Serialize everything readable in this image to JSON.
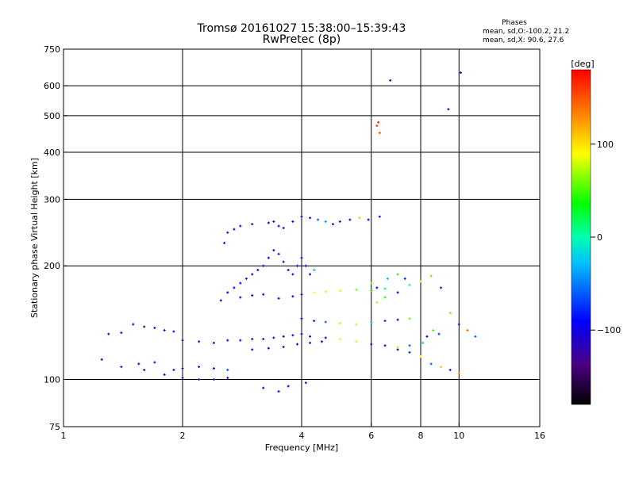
{
  "header": {
    "title_line1": "Tromsø 20161027 15:38:00–15:39:43",
    "title_line2": "RwPretec (8p)"
  },
  "phases_info": {
    "heading": "Phases",
    "line1": "mean, sd,O:-100.2, 21.2",
    "line2": "mean, sd,X:  90.6, 27.6"
  },
  "chart_data": {
    "type": "scatter",
    "title": "Tromsø 20161027 15:38:00–15:39:43",
    "subtitle": "RwPretec (8p)",
    "xlabel": "Frequency [MHz]",
    "ylabel": "Stationary phase Virtual Height [km]",
    "x_scale": "log",
    "y_scale": "log",
    "xlim": [
      1,
      16
    ],
    "ylim": [
      75,
      750
    ],
    "x_ticks": [
      1,
      2,
      4,
      6,
      8,
      10,
      16
    ],
    "x_tick_labels": [
      "1",
      "2",
      "4",
      "6",
      "8",
      "10",
      "16"
    ],
    "y_ticks": [
      75,
      100,
      200,
      300,
      400,
      500,
      600,
      750
    ],
    "y_tick_labels": [
      "75",
      "100",
      "200",
      "300",
      "400",
      "500",
      "600",
      "750"
    ],
    "grid": true,
    "colorbar": {
      "label": "[deg]",
      "range": [
        -180,
        180
      ],
      "ticks": [
        100,
        0,
        -100
      ],
      "tick_labels": [
        "100",
        "0",
        "−100"
      ]
    },
    "series": [
      {
        "points": [
          [
            1.25,
            113
          ],
          [
            1.4,
            108
          ],
          [
            1.55,
            110
          ],
          [
            1.7,
            111
          ],
          [
            1.6,
            106
          ],
          [
            1.3,
            132
          ],
          [
            1.4,
            133
          ],
          [
            1.5,
            140
          ],
          [
            1.6,
            138
          ],
          [
            1.7,
            137
          ],
          [
            1.8,
            135
          ],
          [
            1.9,
            134
          ],
          [
            2.0,
            127
          ],
          [
            2.2,
            126
          ],
          [
            2.4,
            125
          ],
          [
            2.6,
            127
          ],
          [
            2.8,
            127
          ],
          [
            3.0,
            128
          ],
          [
            3.2,
            128
          ],
          [
            3.4,
            129
          ],
          [
            3.6,
            130
          ],
          [
            3.8,
            131
          ],
          [
            4.0,
            132
          ],
          [
            1.8,
            103
          ],
          [
            1.9,
            106
          ],
          [
            2.0,
            107
          ],
          [
            2.2,
            108
          ],
          [
            2.4,
            107
          ],
          [
            2.6,
            106
          ],
          [
            2.0,
            101
          ],
          [
            2.2,
            100
          ],
          [
            2.4,
            100
          ],
          [
            2.6,
            101
          ],
          [
            2.5,
            162
          ],
          [
            2.8,
            165
          ],
          [
            3.0,
            167
          ],
          [
            3.2,
            168
          ],
          [
            3.5,
            164
          ],
          [
            3.8,
            166
          ],
          [
            4.0,
            168
          ],
          [
            4.3,
            170
          ],
          [
            4.6,
            171
          ],
          [
            5.0,
            172
          ],
          [
            5.5,
            173
          ],
          [
            6.0,
            172
          ],
          [
            6.5,
            174
          ],
          [
            2.6,
            170
          ],
          [
            2.7,
            175
          ],
          [
            2.8,
            180
          ],
          [
            2.9,
            185
          ],
          [
            3.0,
            190
          ],
          [
            3.1,
            195
          ],
          [
            3.2,
            200
          ],
          [
            3.3,
            210
          ],
          [
            3.4,
            220
          ],
          [
            3.5,
            215
          ],
          [
            3.6,
            205
          ],
          [
            3.7,
            195
          ],
          [
            3.8,
            190
          ],
          [
            3.9,
            200
          ],
          [
            4.0,
            210
          ],
          [
            4.1,
            200
          ],
          [
            4.2,
            190
          ],
          [
            4.3,
            195
          ],
          [
            2.55,
            230
          ],
          [
            2.6,
            245
          ],
          [
            2.7,
            250
          ],
          [
            2.8,
            255
          ],
          [
            3.0,
            258
          ],
          [
            3.3,
            260
          ],
          [
            3.4,
            262
          ],
          [
            3.5,
            255
          ],
          [
            3.6,
            252
          ],
          [
            3.8,
            262
          ],
          [
            4.0,
            270
          ],
          [
            4.2,
            268
          ],
          [
            4.4,
            265
          ],
          [
            4.6,
            262
          ],
          [
            4.8,
            258
          ],
          [
            5.0,
            262
          ],
          [
            5.3,
            265
          ],
          [
            5.6,
            268
          ],
          [
            5.9,
            265
          ],
          [
            6.3,
            270
          ],
          [
            4.0,
            145
          ],
          [
            4.3,
            143
          ],
          [
            4.6,
            142
          ],
          [
            5.0,
            141
          ],
          [
            5.5,
            140
          ],
          [
            6.0,
            142
          ],
          [
            6.5,
            143
          ],
          [
            7.0,
            144
          ],
          [
            7.5,
            145
          ],
          [
            4.2,
            130
          ],
          [
            4.6,
            129
          ],
          [
            5.0,
            128
          ],
          [
            5.5,
            126
          ],
          [
            6.0,
            124
          ],
          [
            6.5,
            123
          ],
          [
            7.0,
            122
          ],
          [
            7.5,
            123
          ],
          [
            3.0,
            120
          ],
          [
            3.3,
            121
          ],
          [
            3.6,
            122
          ],
          [
            3.9,
            124
          ],
          [
            4.2,
            125
          ],
          [
            4.5,
            126
          ],
          [
            6.2,
            160
          ],
          [
            6.5,
            165
          ],
          [
            7.0,
            170
          ],
          [
            7.5,
            178
          ],
          [
            8.0,
            182
          ],
          [
            8.5,
            188
          ],
          [
            9.0,
            175
          ],
          [
            9.5,
            150
          ],
          [
            10.0,
            140
          ],
          [
            10.5,
            135
          ],
          [
            11.0,
            130
          ],
          [
            6.0,
            180
          ],
          [
            6.2,
            175
          ],
          [
            6.6,
            185
          ],
          [
            7.0,
            190
          ],
          [
            7.3,
            185
          ],
          [
            7.0,
            120
          ],
          [
            7.5,
            118
          ],
          [
            8.0,
            115
          ],
          [
            8.5,
            110
          ],
          [
            9.0,
            108
          ],
          [
            9.5,
            106
          ],
          [
            10.0,
            104
          ],
          [
            8.1,
            125
          ],
          [
            8.3,
            130
          ],
          [
            8.6,
            135
          ],
          [
            8.9,
            132
          ],
          [
            3.2,
            95
          ],
          [
            3.5,
            93
          ],
          [
            3.7,
            96
          ],
          [
            4.1,
            98
          ],
          [
            6.2,
            470
          ],
          [
            6.3,
            450
          ],
          [
            6.25,
            480
          ],
          [
            6.7,
            620
          ],
          [
            9.4,
            520
          ],
          [
            10.1,
            650
          ]
        ],
        "phases": [
          -100,
          -110,
          -105,
          -112,
          -108,
          -110,
          -108,
          -105,
          -112,
          -110,
          -106,
          -102,
          -115,
          -108,
          -110,
          -105,
          -108,
          -110,
          -112,
          -106,
          -104,
          -100,
          -95,
          -115,
          -110,
          -108,
          -112,
          -110,
          -70,
          -118,
          -115,
          -112,
          -105,
          -110,
          -108,
          -106,
          -104,
          -100,
          -98,
          -95,
          90,
          85,
          95,
          60,
          40,
          20,
          -100,
          -95,
          -90,
          -95,
          -100,
          -92,
          -96,
          -90,
          -98,
          -100,
          -95,
          -90,
          -85,
          -88,
          -92,
          -95,
          -100,
          -30,
          -90,
          -88,
          -100,
          -105,
          -110,
          -108,
          -100,
          -95,
          -90,
          -95,
          -100,
          -95,
          -60,
          -40,
          -90,
          -100,
          -95,
          110,
          -90,
          -100,
          -90,
          -85,
          -60,
          80,
          100,
          -30,
          -80,
          -95,
          60,
          -92,
          -90,
          95,
          100,
          -100,
          -90,
          80,
          -60,
          -108,
          -104,
          -102,
          -100,
          -95,
          -90,
          70,
          40,
          -90,
          10,
          100,
          120,
          -80,
          60,
          -100,
          140,
          -60,
          60,
          -90,
          -30,
          40,
          -80,
          -100,
          -80,
          90,
          -60,
          110,
          -100,
          130,
          -20,
          -90,
          50,
          -70,
          -100,
          -95,
          -90,
          -110,
          160,
          150,
          170,
          -105,
          -100,
          -95
        ]
      }
    ]
  }
}
